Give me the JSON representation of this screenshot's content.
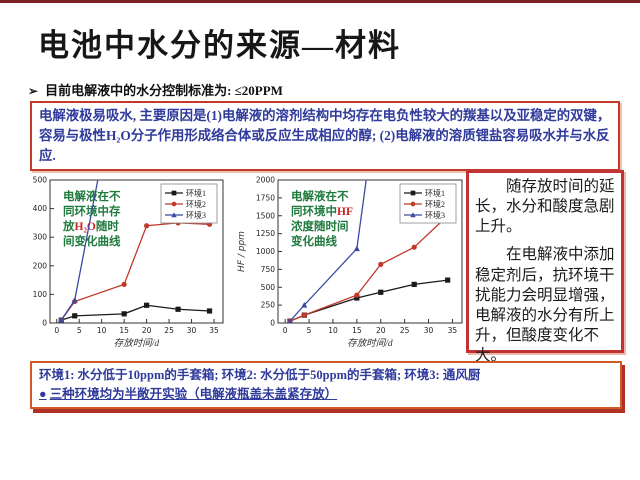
{
  "header": {
    "title": "电池中水分的来源—材料"
  },
  "bullet": {
    "marker": "➢",
    "text": "目前电解液中的水分控制标准为: ≤20PPM"
  },
  "reason_box": {
    "text": "电解液极易吸水, 主要原因是(1)电解液的溶剂结构中均存在电负性较大的羰基以及亚稳定的双键，容易与极性H₂O分子作用形成络合体或反应生成相应的醇; (2)电解液的溶质锂盐容易吸水并与水反应."
  },
  "conclusion_box": {
    "paragraph1": "随存放时间的延长，水分和酸度急剧上升。",
    "paragraph2": "在电解液中添加稳定剂后，抗环境干扰能力会明显增强，电解液的水分有所上升，但酸度变化不大。"
  },
  "env_box": {
    "line1": "环境1: 水分低于10ppm的手套箱; 环境2: 水分低于50ppm的手套箱; 环境3: 通风厨",
    "bullet_marker": "●",
    "line2": "三种环境均为半敞开实验（电解液瓶盖未盖紧存放）"
  },
  "colors": {
    "accent_red_border": "#c43b2a",
    "orange_border": "#cf5a23",
    "blue_text": "#2f3a9b",
    "annotation_green": "#1f7a3d",
    "annotation_red": "#cc2222",
    "series_black": "#1a1a1a",
    "series_red": "#c0392b",
    "series_blue": "#3b4a9f"
  },
  "chart_data": [
    {
      "type": "line",
      "title": "电解液在不同环境中存放H₂O随时间变化曲线",
      "xlabel": "存放时间/d",
      "ylabel": "",
      "xlim": [
        -1.5,
        37
      ],
      "ylim": [
        0,
        500
      ],
      "xticks": [
        0,
        5,
        10,
        15,
        20,
        25,
        30,
        35
      ],
      "yticks": [
        0,
        100,
        200,
        300,
        400,
        500
      ],
      "legend_position": "top-right",
      "grid": false,
      "annotation_lines": [
        [
          {
            "t": "电解液在不",
            "c": "green"
          }
        ],
        [
          {
            "t": "同环境中存",
            "c": "green"
          }
        ],
        [
          {
            "t": "放",
            "c": "green"
          },
          {
            "t": "H₂O",
            "c": "red"
          },
          {
            "t": "随时",
            "c": "green"
          }
        ],
        [
          {
            "t": "间变化曲线",
            "c": "green"
          }
        ]
      ],
      "series": [
        {
          "name": "环境1",
          "color": "#1a1a1a",
          "marker": "square",
          "x": [
            1,
            4,
            15,
            20,
            27,
            34
          ],
          "y": [
            10,
            25,
            32,
            62,
            48,
            42
          ]
        },
        {
          "name": "环境2",
          "color": "#c0392b",
          "marker": "circle",
          "x": [
            1,
            4,
            15,
            20,
            27,
            34
          ],
          "y": [
            10,
            75,
            135,
            340,
            350,
            345
          ]
        },
        {
          "name": "环境3",
          "color": "#3b4a9f",
          "marker": "triangle",
          "x": [
            1,
            4,
            9.5
          ],
          "y": [
            10,
            80,
            530
          ]
        }
      ]
    },
    {
      "type": "line",
      "title": "电解液在不同环境中HF浓度随时间变化曲线",
      "xlabel": "存放时间/d",
      "ylabel": "HF / ppm",
      "xlim": [
        -1.5,
        37
      ],
      "ylim": [
        0,
        2000
      ],
      "xticks": [
        0,
        5,
        10,
        15,
        20,
        25,
        30,
        35
      ],
      "yticks": [
        0,
        250,
        500,
        750,
        1000,
        1250,
        1500,
        1750,
        2000
      ],
      "legend_position": "top-right",
      "grid": false,
      "annotation_lines": [
        [
          {
            "t": "电解液在不",
            "c": "green"
          }
        ],
        [
          {
            "t": "同环境中",
            "c": "green"
          },
          {
            "t": "HF",
            "c": "red"
          }
        ],
        [
          {
            "t": "浓度随时间",
            "c": "green"
          }
        ],
        [
          {
            "t": "变化曲线",
            "c": "green"
          }
        ]
      ],
      "series": [
        {
          "name": "环境1",
          "color": "#1a1a1a",
          "marker": "square",
          "x": [
            1,
            4,
            15,
            20,
            27,
            34
          ],
          "y": [
            25,
            110,
            350,
            430,
            540,
            600
          ]
        },
        {
          "name": "环境2",
          "color": "#c0392b",
          "marker": "circle",
          "x": [
            1,
            4,
            15,
            20,
            27,
            34
          ],
          "y": [
            25,
            110,
            390,
            820,
            1060,
            1500
          ]
        },
        {
          "name": "环境3",
          "color": "#3b4a9f",
          "marker": "triangle",
          "x": [
            1,
            4,
            15,
            17.2
          ],
          "y": [
            25,
            250,
            1040,
            2120
          ]
        }
      ]
    }
  ]
}
